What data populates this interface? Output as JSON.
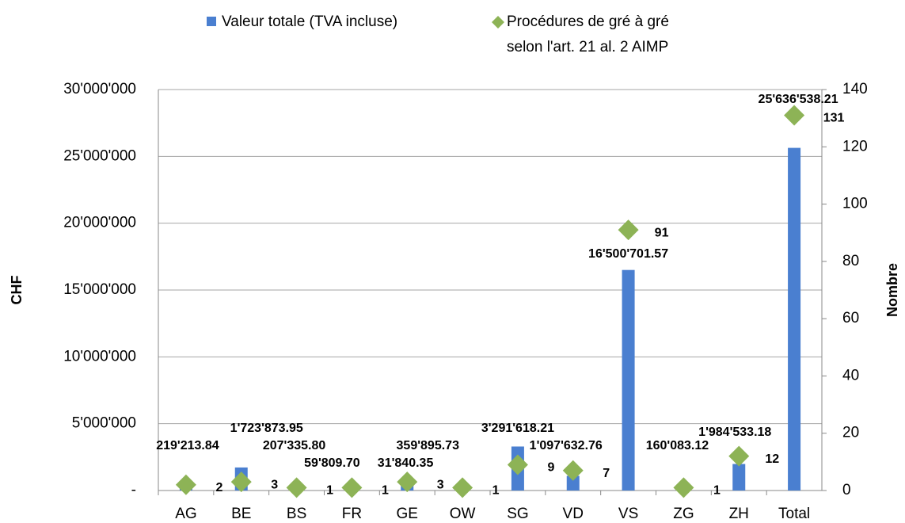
{
  "chart_data": {
    "type": "bar",
    "categories": [
      "AG",
      "BE",
      "BS",
      "FR",
      "GE",
      "OW",
      "SG",
      "VD",
      "VS",
      "ZG",
      "ZH",
      "Total"
    ],
    "series": [
      {
        "name": "Valeur totale (TVA incluse)",
        "color": "#4a7fd0",
        "type": "bar",
        "values": [
          219213.84,
          1723873.95,
          207335.8,
          59809.7,
          359895.73,
          31840.35,
          3291618.21,
          1097632.76,
          16500701.57,
          160083.12,
          1984533.18,
          25636538.21
        ],
        "value_labels": [
          "219'213.84",
          "1'723'873.95",
          "207'335.80",
          "59'809.70",
          "359'895.73",
          "31'840.35",
          "3'291'618.21",
          "1'097'632.76",
          "16'500'701.57",
          "160'083.12",
          "1'984'533.18",
          "25'636'538.21"
        ]
      },
      {
        "name": "Procédures de gré à gré\nselon l'art. 21 al. 2 AIMP",
        "color": "#8db356",
        "type": "scatter",
        "axis": "y2",
        "values": [
          2,
          3,
          1,
          1,
          3,
          1,
          9,
          7,
          91,
          1,
          12,
          131
        ]
      }
    ],
    "y_label": "CHF",
    "y2_label": "Nombre",
    "ylim": [
      0,
      30000000
    ],
    "yticks": [
      {
        "value": 0,
        "label": "-"
      },
      {
        "value": 5000000,
        "label": "5'000'000"
      },
      {
        "value": 10000000,
        "label": "10'000'000"
      },
      {
        "value": 15000000,
        "label": "15'000'000"
      },
      {
        "value": 20000000,
        "label": "20'000'000"
      },
      {
        "value": 25000000,
        "label": "25'000'000"
      },
      {
        "value": 30000000,
        "label": "30'000'000"
      }
    ],
    "y2lim": [
      0,
      140
    ],
    "y2ticks": [
      0,
      20,
      40,
      60,
      80,
      100,
      120,
      140
    ],
    "grid": true,
    "legend": "top"
  }
}
